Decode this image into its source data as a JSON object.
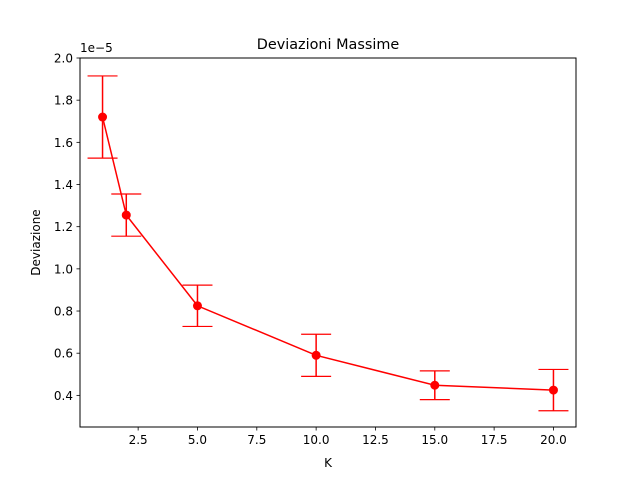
{
  "chart_data": {
    "type": "line",
    "title": "Deviazioni Massime",
    "xlabel": "K",
    "ylabel": "Deviazione",
    "y_offset_label": "1e−5",
    "xlim": [
      0.05,
      20.95
    ],
    "ylim": [
      0.25,
      2.0
    ],
    "x_ticks": [
      2.5,
      5.0,
      7.5,
      10.0,
      12.5,
      15.0,
      17.5,
      20.0
    ],
    "x_tick_labels": [
      "2.5",
      "5.0",
      "7.5",
      "10.0",
      "12.5",
      "15.0",
      "17.5",
      "20.0"
    ],
    "y_ticks": [
      0.4,
      0.6,
      0.8,
      1.0,
      1.2,
      1.4,
      1.6,
      1.8,
      2.0
    ],
    "y_tick_labels": [
      "0.4",
      "0.6",
      "0.8",
      "1.0",
      "1.2",
      "1.4",
      "1.6",
      "1.8",
      "2.0"
    ],
    "grid": false,
    "legend": "none",
    "color": "#ff0000",
    "series": [
      {
        "x": [
          1,
          2,
          5,
          10,
          15,
          20
        ],
        "y": [
          1.72,
          1.255,
          0.825,
          0.59,
          0.448,
          0.425
        ],
        "yerr": [
          0.195,
          0.1,
          0.098,
          0.1,
          0.068,
          0.098
        ]
      }
    ]
  }
}
